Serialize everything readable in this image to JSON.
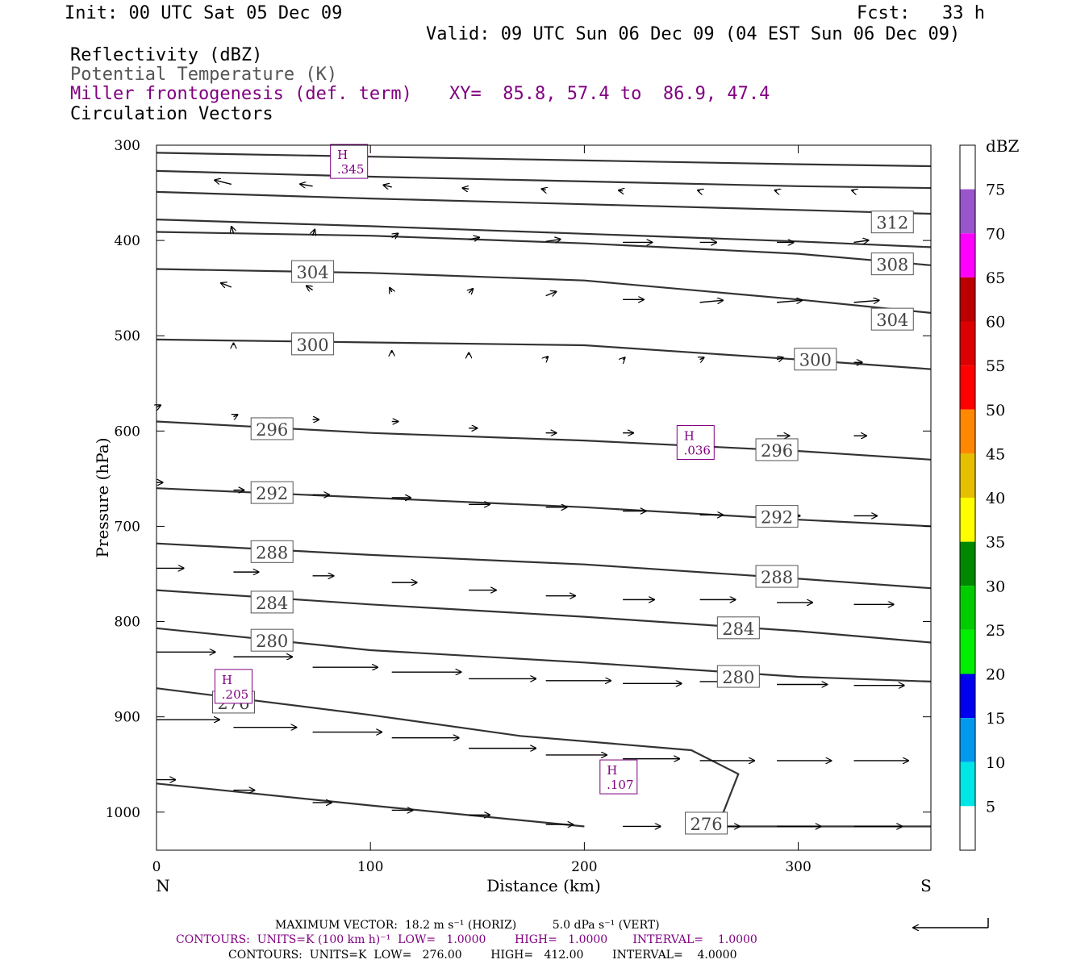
{
  "header": {
    "init": "Init: 00 UTC Sat 05 Dec 09",
    "fcst": "Fcst:   33 h",
    "valid": "Valid: 09 UTC Sun 06 Dec 09 (04 EST Sun 06 Dec 09)",
    "field1": "Reflectivity (dBZ)",
    "field2": "Potential Temperature (K)",
    "field3": "Miller frontogenesis (def. term)",
    "xy": "XY=  85.8, 57.4 to  86.9, 47.4",
    "field4": "Circulation Vectors"
  },
  "colors": {
    "purple": "#800080",
    "theta_line": "#333333",
    "frame": "#000000"
  },
  "footer": {
    "vector_line": "MAXIMUM VECTOR:  18.2 m s⁻¹ (HORIZ)          5.0 dPa s⁻¹ (VERT)",
    "contours1": "CONTOURS:  UNITS=K (100 km h)⁻¹  LOW=   1.0000        HIGH=   1.0000       INTERVAL=    1.0000",
    "contours2": "CONTOURS:  UNITS=K  LOW=   276.00        HIGH=   412.00        INTERVAL=    4.0000"
  },
  "chart_data": {
    "type": "cross-section",
    "xlabel": "Distance (km)",
    "ylabel": "Pressure (hPa)",
    "xlim": [
      0,
      362
    ],
    "ylim": [
      1040,
      300
    ],
    "x_ticks": [
      0,
      100,
      200,
      300
    ],
    "y_ticks": [
      300,
      400,
      500,
      600,
      700,
      800,
      900,
      1000
    ],
    "left_end_label": "N",
    "right_end_label": "S",
    "colorbar": {
      "unit": "dBZ",
      "ticks": [
        5,
        10,
        15,
        20,
        25,
        30,
        35,
        40,
        45,
        50,
        55,
        60,
        65,
        70,
        75
      ],
      "colors": [
        "#ffffff",
        "#00e5e5",
        "#0099ee",
        "#0000ee",
        "#00ee00",
        "#00cc00",
        "#008800",
        "#ffff00",
        "#e5bf00",
        "#ff8800",
        "#ff0000",
        "#dd0000",
        "#bb0000",
        "#ff00ff",
        "#9955cc",
        "#ffffff"
      ]
    },
    "theta_contours": [
      {
        "value": "",
        "points": [
          [
            0,
            308
          ],
          [
            100,
            312
          ],
          [
            200,
            316
          ],
          [
            300,
            320
          ],
          [
            362,
            322
          ]
        ]
      },
      {
        "value": "",
        "points": [
          [
            0,
            327
          ],
          [
            100,
            333
          ],
          [
            200,
            338
          ],
          [
            300,
            343
          ],
          [
            362,
            345
          ]
        ]
      },
      {
        "value": "",
        "points": [
          [
            0,
            349
          ],
          [
            100,
            356
          ],
          [
            200,
            362
          ],
          [
            300,
            368
          ],
          [
            362,
            372
          ]
        ]
      },
      {
        "value": "312",
        "points": [
          [
            0,
            378
          ],
          [
            100,
            385
          ],
          [
            200,
            393
          ],
          [
            300,
            401
          ],
          [
            362,
            407
          ]
        ]
      },
      {
        "value": "308",
        "points": [
          [
            0,
            391
          ],
          [
            100,
            395
          ],
          [
            200,
            403
          ],
          [
            300,
            414
          ],
          [
            362,
            426
          ]
        ]
      },
      {
        "value": "304",
        "points": [
          [
            0,
            430
          ],
          [
            100,
            434
          ],
          [
            200,
            442
          ],
          [
            300,
            462
          ],
          [
            362,
            476
          ]
        ]
      },
      {
        "value": "300",
        "points": [
          [
            0,
            504
          ],
          [
            100,
            507
          ],
          [
            200,
            510
          ],
          [
            300,
            525
          ],
          [
            362,
            535
          ]
        ]
      },
      {
        "value": "296",
        "points": [
          [
            0,
            590
          ],
          [
            100,
            602
          ],
          [
            200,
            610
          ],
          [
            300,
            621
          ],
          [
            362,
            630
          ]
        ]
      },
      {
        "value": "292",
        "points": [
          [
            0,
            660
          ],
          [
            100,
            670
          ],
          [
            200,
            680
          ],
          [
            300,
            693
          ],
          [
            362,
            700
          ]
        ]
      },
      {
        "value": "288",
        "points": [
          [
            0,
            718
          ],
          [
            100,
            730
          ],
          [
            200,
            740
          ],
          [
            300,
            755
          ],
          [
            362,
            765
          ]
        ]
      },
      {
        "value": "284",
        "points": [
          [
            0,
            767
          ],
          [
            100,
            782
          ],
          [
            200,
            795
          ],
          [
            300,
            810
          ],
          [
            362,
            822
          ]
        ]
      },
      {
        "value": "280",
        "points": [
          [
            0,
            807
          ],
          [
            100,
            830
          ],
          [
            200,
            843
          ],
          [
            300,
            858
          ],
          [
            362,
            863
          ]
        ]
      },
      {
        "value": "276",
        "points": [
          [
            0,
            870
          ],
          [
            100,
            898
          ],
          [
            170,
            920
          ],
          [
            250,
            935
          ],
          [
            272,
            960
          ],
          [
            265,
            1000
          ],
          [
            250,
            1015
          ],
          [
            362,
            1015
          ]
        ]
      },
      {
        "value": "",
        "points": [
          [
            0,
            970
          ],
          [
            100,
            993
          ],
          [
            200,
            1015
          ]
        ]
      }
    ],
    "theta_labels": [
      {
        "text": "312",
        "x": 344,
        "p": 381
      },
      {
        "text": "308",
        "x": 344,
        "p": 425
      },
      {
        "text": "304",
        "x": 73,
        "p": 433
      },
      {
        "text": "304",
        "x": 344,
        "p": 483
      },
      {
        "text": "300",
        "x": 73,
        "p": 509
      },
      {
        "text": "300",
        "x": 308,
        "p": 525
      },
      {
        "text": "296",
        "x": 54,
        "p": 598
      },
      {
        "text": "296",
        "x": 290,
        "p": 620
      },
      {
        "text": "292",
        "x": 54,
        "p": 665
      },
      {
        "text": "292",
        "x": 290,
        "p": 690
      },
      {
        "text": "288",
        "x": 54,
        "p": 727
      },
      {
        "text": "288",
        "x": 290,
        "p": 753
      },
      {
        "text": "284",
        "x": 54,
        "p": 780
      },
      {
        "text": "284",
        "x": 272,
        "p": 807
      },
      {
        "text": "280",
        "x": 54,
        "p": 820
      },
      {
        "text": "280",
        "x": 272,
        "p": 858
      },
      {
        "text": "276",
        "x": 36,
        "p": 885
      },
      {
        "text": "276",
        "x": 257,
        "p": 1012
      }
    ],
    "maxima": [
      {
        "label": "H",
        "value": ".345",
        "x": 90,
        "p": 317
      },
      {
        "label": "H",
        "value": ".036",
        "x": 252,
        "p": 612
      },
      {
        "label": "H",
        "value": ".205",
        "x": 36,
        "p": 868
      },
      {
        "label": "H",
        "value": ".107",
        "x": 216,
        "p": 963
      }
    ],
    "vectors": [
      {
        "x": 35,
        "p": 341,
        "u": -8,
        "w": 2
      },
      {
        "x": 73,
        "p": 343,
        "u": -6,
        "w": 1
      },
      {
        "x": 110,
        "p": 344,
        "u": -4,
        "w": 1
      },
      {
        "x": 146,
        "p": 346,
        "u": -3,
        "w": 0.5
      },
      {
        "x": 182,
        "p": 347,
        "u": -2,
        "w": 0.5
      },
      {
        "x": 218,
        "p": 348,
        "u": -2,
        "w": 0.3
      },
      {
        "x": 254,
        "p": 348,
        "u": -1,
        "w": 0.3
      },
      {
        "x": 290,
        "p": 348,
        "u": -1,
        "w": 0.3
      },
      {
        "x": 326,
        "p": 348,
        "u": -1,
        "w": 0.3
      },
      {
        "x": 36,
        "p": 392,
        "u": -1,
        "w": 3
      },
      {
        "x": 73,
        "p": 395,
        "u": 1,
        "w": 3
      },
      {
        "x": 110,
        "p": 397,
        "u": 3,
        "w": 2
      },
      {
        "x": 146,
        "p": 399,
        "u": 5,
        "w": 1
      },
      {
        "x": 182,
        "p": 401,
        "u": 7,
        "w": 1
      },
      {
        "x": 218,
        "p": 402,
        "u": 14,
        "w": 0
      },
      {
        "x": 254,
        "p": 402,
        "u": 8,
        "w": 0
      },
      {
        "x": 290,
        "p": 402,
        "u": 8,
        "w": 0
      },
      {
        "x": 326,
        "p": 402,
        "u": 7,
        "w": 1
      },
      {
        "x": 35,
        "p": 449,
        "u": -5,
        "w": 2
      },
      {
        "x": 73,
        "p": 452,
        "u": -3,
        "w": 2
      },
      {
        "x": 110,
        "p": 454,
        "u": -1,
        "w": 2
      },
      {
        "x": 146,
        "p": 455,
        "u": 2,
        "w": 2
      },
      {
        "x": 182,
        "p": 458,
        "u": 5,
        "w": 2
      },
      {
        "x": 218,
        "p": 462,
        "u": 10,
        "w": 0
      },
      {
        "x": 254,
        "p": 465,
        "u": 11,
        "w": 1
      },
      {
        "x": 290,
        "p": 465,
        "u": 12,
        "w": 1
      },
      {
        "x": 326,
        "p": 465,
        "u": 12,
        "w": 1
      },
      {
        "x": 36,
        "p": 510,
        "u": 0,
        "w": 1
      },
      {
        "x": 73,
        "p": 516,
        "u": 0,
        "w": 1
      },
      {
        "x": 110,
        "p": 518,
        "u": 0,
        "w": 1
      },
      {
        "x": 146,
        "p": 520,
        "u": 0,
        "w": 1
      },
      {
        "x": 182,
        "p": 524,
        "u": 1,
        "w": 1
      },
      {
        "x": 218,
        "p": 525,
        "u": 1,
        "w": 1
      },
      {
        "x": 254,
        "p": 525,
        "u": 2,
        "w": 1
      },
      {
        "x": 290,
        "p": 525,
        "u": 3,
        "w": 1
      },
      {
        "x": 326,
        "p": 528,
        "u": 4,
        "w": 0
      },
      {
        "x": 0,
        "p": 575,
        "u": 2,
        "w": 1
      },
      {
        "x": 36,
        "p": 585,
        "u": 2,
        "w": 1
      },
      {
        "x": 73,
        "p": 588,
        "u": 3,
        "w": 0
      },
      {
        "x": 110,
        "p": 590,
        "u": 3,
        "w": 0
      },
      {
        "x": 146,
        "p": 597,
        "u": 4,
        "w": 0
      },
      {
        "x": 182,
        "p": 602,
        "u": 5,
        "w": 0
      },
      {
        "x": 218,
        "p": 602,
        "u": 5,
        "w": 0
      },
      {
        "x": 254,
        "p": 603,
        "u": 5,
        "w": 0
      },
      {
        "x": 290,
        "p": 605,
        "u": 6,
        "w": 0
      },
      {
        "x": 326,
        "p": 605,
        "u": 6,
        "w": 0
      },
      {
        "x": 0,
        "p": 654,
        "u": 3,
        "w": 0
      },
      {
        "x": 36,
        "p": 662,
        "u": 5,
        "w": 0
      },
      {
        "x": 73,
        "p": 667,
        "u": 8,
        "w": 0
      },
      {
        "x": 110,
        "p": 670,
        "u": 9,
        "w": 0
      },
      {
        "x": 146,
        "p": 677,
        "u": 10,
        "w": 0
      },
      {
        "x": 182,
        "p": 680,
        "u": 10,
        "w": 0
      },
      {
        "x": 218,
        "p": 684,
        "u": 11,
        "w": 0
      },
      {
        "x": 254,
        "p": 688,
        "u": 11,
        "w": 0
      },
      {
        "x": 290,
        "p": 689,
        "u": 11,
        "w": 0
      },
      {
        "x": 326,
        "p": 689,
        "u": 11,
        "w": 0
      },
      {
        "x": 0,
        "p": 744,
        "u": 13,
        "w": 0
      },
      {
        "x": 36,
        "p": 748,
        "u": 12,
        "w": 0
      },
      {
        "x": 73,
        "p": 752,
        "u": 10,
        "w": 0
      },
      {
        "x": 110,
        "p": 759,
        "u": 12,
        "w": 0
      },
      {
        "x": 146,
        "p": 767,
        "u": 13,
        "w": 0
      },
      {
        "x": 182,
        "p": 773,
        "u": 14,
        "w": 0
      },
      {
        "x": 218,
        "p": 777,
        "u": 15,
        "w": 0
      },
      {
        "x": 254,
        "p": 777,
        "u": 17,
        "w": 0
      },
      {
        "x": 290,
        "p": 780,
        "u": 17,
        "w": 0
      },
      {
        "x": 326,
        "p": 782,
        "u": 19,
        "w": 0
      },
      {
        "x": 0,
        "p": 832,
        "u": 28,
        "w": 0
      },
      {
        "x": 36,
        "p": 837,
        "u": 28,
        "w": 0
      },
      {
        "x": 73,
        "p": 848,
        "u": 31,
        "w": 0
      },
      {
        "x": 110,
        "p": 853,
        "u": 33,
        "w": 0
      },
      {
        "x": 146,
        "p": 860,
        "u": 32,
        "w": 0
      },
      {
        "x": 182,
        "p": 862,
        "u": 31,
        "w": 0
      },
      {
        "x": 218,
        "p": 865,
        "u": 28,
        "w": 0
      },
      {
        "x": 254,
        "p": 863,
        "u": 25,
        "w": 0
      },
      {
        "x": 290,
        "p": 866,
        "u": 24,
        "w": 0
      },
      {
        "x": 326,
        "p": 867,
        "u": 24,
        "w": 0
      },
      {
        "x": 0,
        "p": 903,
        "u": 30,
        "w": 0
      },
      {
        "x": 36,
        "p": 911,
        "u": 30,
        "w": 0
      },
      {
        "x": 73,
        "p": 916,
        "u": 33,
        "w": 0
      },
      {
        "x": 110,
        "p": 922,
        "u": 32,
        "w": 0
      },
      {
        "x": 146,
        "p": 933,
        "u": 32,
        "w": 0
      },
      {
        "x": 182,
        "p": 940,
        "u": 29,
        "w": 0
      },
      {
        "x": 218,
        "p": 944,
        "u": 27,
        "w": 0
      },
      {
        "x": 254,
        "p": 946,
        "u": 26,
        "w": 0
      },
      {
        "x": 290,
        "p": 946,
        "u": 26,
        "w": 0
      },
      {
        "x": 326,
        "p": 946,
        "u": 26,
        "w": 0
      },
      {
        "x": 0,
        "p": 966,
        "u": 9,
        "w": 0
      },
      {
        "x": 36,
        "p": 977,
        "u": 10,
        "w": 0
      },
      {
        "x": 73,
        "p": 990,
        "u": 9,
        "w": 0
      },
      {
        "x": 110,
        "p": 998,
        "u": 10,
        "w": 0
      },
      {
        "x": 146,
        "p": 1003,
        "u": 10,
        "w": 0
      },
      {
        "x": 182,
        "p": 1013,
        "u": 13,
        "w": 0
      },
      {
        "x": 218,
        "p": 1015,
        "u": 18,
        "w": 0
      },
      {
        "x": 254,
        "p": 1015,
        "u": 19,
        "w": 0
      },
      {
        "x": 290,
        "p": 1015,
        "u": 21,
        "w": 0
      },
      {
        "x": 326,
        "p": 1015,
        "u": 23,
        "w": 0
      }
    ]
  }
}
